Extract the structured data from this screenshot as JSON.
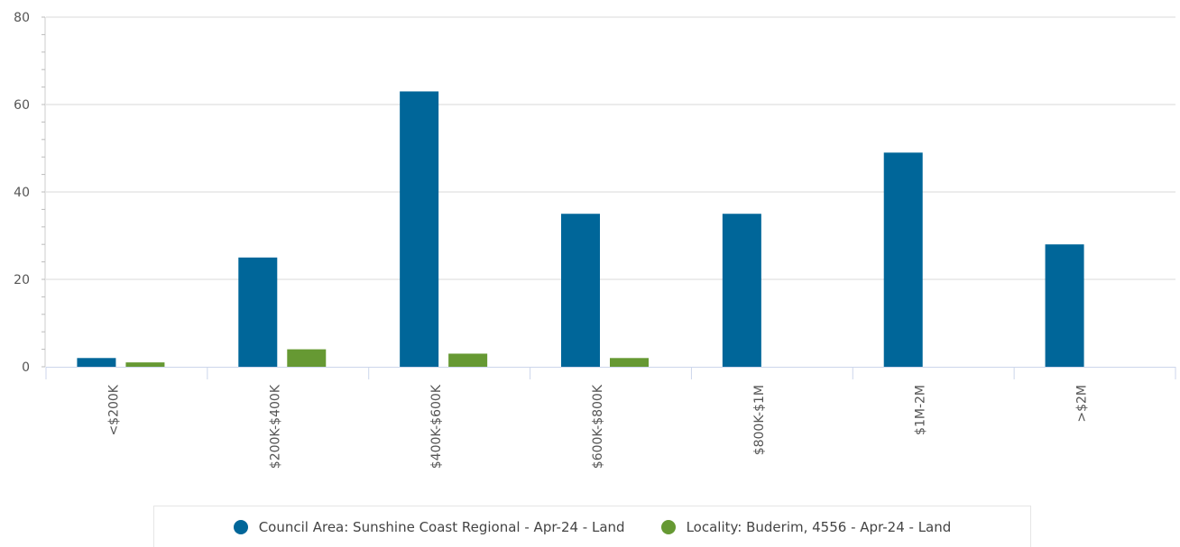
{
  "chart_data": {
    "type": "bar",
    "categories": [
      "<$200K",
      "$200K-$400K",
      "$400K-$600K",
      "$600K-$800K",
      "$800K-$1M",
      "$1M-2M",
      ">$2M"
    ],
    "series": [
      {
        "name": "Council Area: Sunshine Coast Regional - Apr-24 - Land",
        "color": "#006699",
        "values": [
          2,
          25,
          63,
          35,
          35,
          49,
          28
        ]
      },
      {
        "name": "Locality: Buderim, 4556 - Apr-24 - Land",
        "color": "#669933",
        "values": [
          1,
          4,
          3,
          2,
          0,
          0,
          0
        ]
      }
    ],
    "yticks": [
      0,
      20,
      40,
      60,
      80
    ],
    "ylim": [
      0,
      80
    ],
    "grid": true,
    "legend_position": "bottom"
  }
}
